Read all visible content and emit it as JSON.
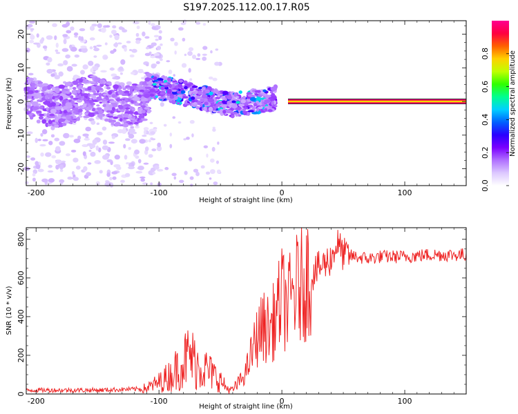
{
  "chart_data": [
    {
      "type": "heatmap",
      "title": "S197.2025.112.00.17.R05",
      "xlabel": "Height of straight line (km)",
      "ylabel": "Frequency (Hz)",
      "xlim": [
        -208,
        150
      ],
      "ylim": [
        -25,
        24
      ],
      "x_ticks": [
        -200,
        -100,
        0,
        100
      ],
      "y_ticks": [
        -20,
        -10,
        0,
        10,
        20
      ],
      "colorbar": {
        "label": "Normalized spectral amplitude",
        "range": [
          0,
          1
        ],
        "ticks": [
          0.0,
          0.2,
          0.4,
          0.6,
          0.8
        ],
        "colors": [
          "#ffffff",
          "#dcc8ff",
          "#b070ff",
          "#7a00ff",
          "#2a00ff",
          "#0060ff",
          "#00d0ff",
          "#00ff90",
          "#30ff00",
          "#c0ff00",
          "#ffd000",
          "#ff6000",
          "#ff0040",
          "#ff0090"
        ]
      },
      "features": [
        {
          "description_x_range": [
            -208,
            -110
          ],
          "center_hz": 0,
          "amplitude": 0.1
        },
        {
          "description_x_range": [
            -110,
            -5
          ],
          "center_hz": "drifts from 5 to -4",
          "amplitude": 0.35
        },
        {
          "description_x_range": [
            5,
            150
          ],
          "center_hz": 0,
          "amplitude": 0.95
        }
      ]
    },
    {
      "type": "line",
      "xlabel": "Height of straight line (km)",
      "ylabel": "SNR (10 * v/v)",
      "xlim": [
        -208,
        150
      ],
      "ylim": [
        0,
        860
      ],
      "x_ticks": [
        -200,
        -100,
        0,
        100
      ],
      "y_ticks": [
        0,
        200,
        400,
        600,
        800
      ],
      "series": [
        {
          "color": "#ee2222",
          "x": [
            -208,
            -150,
            -120,
            -110,
            -100,
            -90,
            -80,
            -75,
            -70,
            -60,
            -50,
            -45,
            -40,
            -30,
            -25,
            -20,
            -15,
            -10,
            -5,
            0,
            5,
            10,
            15,
            20,
            25,
            30,
            40,
            45,
            50,
            60,
            70,
            80,
            100,
            120,
            140,
            150
          ],
          "y": [
            20,
            20,
            25,
            30,
            60,
            100,
            170,
            200,
            160,
            120,
            70,
            30,
            20,
            100,
            200,
            300,
            350,
            330,
            400,
            500,
            450,
            530,
            560,
            600,
            620,
            650,
            700,
            780,
            720,
            710,
            700,
            710,
            710,
            720,
            720,
            720
          ]
        }
      ]
    }
  ]
}
